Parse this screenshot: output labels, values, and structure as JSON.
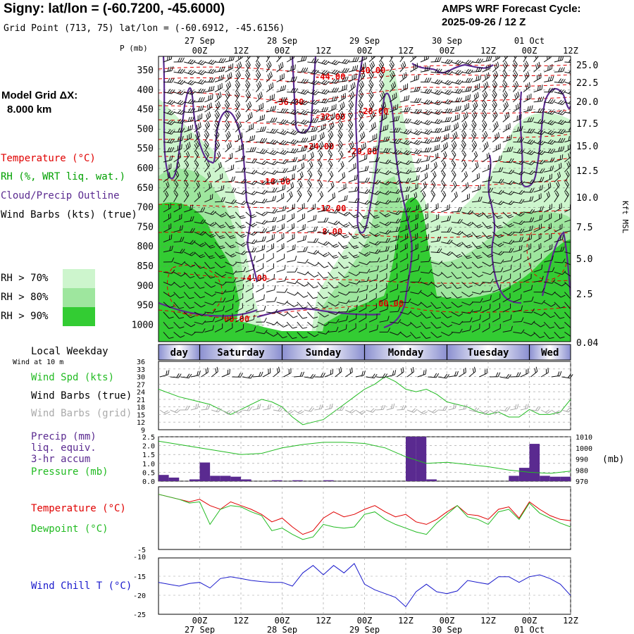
{
  "header": {
    "title": "Signy:  lat/lon = (-60.7200, -45.6000)",
    "grid_point": "Grid Point (713, 75) lat/lon = (-60.6912, -45.6156)",
    "cycle_line1": "AMPS WRF Forecast Cycle:",
    "cycle_line2": "2025-09-26 / 12  Z"
  },
  "model": {
    "label": "Model Grid ΔX:",
    "value": "8.000 km"
  },
  "colors": {
    "temperature": "#e00000",
    "rh_label": "#00a000",
    "cloud": "#5a2a90",
    "wind": "#000000",
    "rh70": "#cdf5cd",
    "rh80": "#9ee69e",
    "rh90": "#33cc33",
    "dewpoint": "#22bb22",
    "pressure": "#22bb22",
    "precip": "#5a2a90",
    "windchill": "#1a1acc",
    "grid_barbs": "#aaaaaa"
  },
  "cross_section": {
    "y_axis_title": "P (mb)",
    "pressure_ticks": [
      "350",
      "400",
      "450",
      "500",
      "550",
      "600",
      "650",
      "700",
      "750",
      "800",
      "850",
      "900",
      "950",
      "1000"
    ],
    "height_axis_title": "Kft MSL",
    "height_ticks": [
      "25.0",
      "22.5",
      "20.0",
      "17.5",
      "15.0",
      "12.5",
      "10.0",
      "7.5",
      "5.0",
      "2.5",
      "0.04"
    ],
    "legend": {
      "temperature": "Temperature (°C)",
      "rh": "RH (%, WRT liq. wat.)",
      "cloud": "Cloud/Precip Outline",
      "wind": "Wind Barbs (kts) (true)",
      "rh70": "RH > 70%",
      "rh80": "RH > 80%",
      "rh90": "RH > 90%"
    },
    "contour_labels": [
      "-44.00",
      "-40.00",
      "-36.00",
      "-32.00",
      "-28.00",
      "-24.00",
      "-20.00",
      "-16.00",
      "-12.00",
      "-8.00",
      "-4.00",
      "00.00",
      "00.00"
    ]
  },
  "time_axis": {
    "top_dates": [
      "27 Sep",
      "28 Sep",
      "29 Sep",
      "30 Sep",
      "01 Oct"
    ],
    "hour_ticks": [
      "00Z",
      "12Z",
      "00Z",
      "12Z",
      "00Z",
      "12Z",
      "00Z",
      "12Z",
      "00Z",
      "12Z"
    ],
    "bottom_dates": [
      "27 Sep",
      "28 Sep",
      "29 Sep",
      "30 Sep",
      "01 Oct"
    ]
  },
  "weekday": {
    "label": "Local Weekday",
    "days": [
      "day",
      "Saturday",
      "Sunday",
      "Monday",
      "Tuesday",
      "Wed"
    ]
  },
  "wind_panel": {
    "note": "Wind at 10 m",
    "spd_label": "Wind Spd (kts)",
    "barbs_true_label": "Wind Barbs (true)",
    "barbs_grid_label": "Wind Barbs (grid)",
    "ticks": [
      "36",
      "33",
      "30",
      "27",
      "24",
      "21",
      "18",
      "15",
      "12",
      "9"
    ]
  },
  "precip_panel": {
    "label1": "Precip (mm)",
    "label2": "liq. equiv.",
    "label3": "3-hr accum",
    "label4": "Pressure (mb)",
    "left_ticks": [
      "2.5",
      "2.0",
      "1.5",
      "1.0",
      "0.5",
      "0.0"
    ],
    "right_ticks": [
      "1010",
      "1000",
      "990",
      "980",
      "970"
    ],
    "right_unit": "(mb)"
  },
  "temp_panel": {
    "temp_label": "Temperature (°C)",
    "dew_label": "Dewpoint (°C)",
    "ticks": [
      "-5"
    ]
  },
  "chill_panel": {
    "label": "Wind Chill T (°C)",
    "ticks": [
      "-10",
      "-15",
      "-20",
      "-25"
    ]
  },
  "chart_data": [
    {
      "type": "line",
      "title": "Wind Spd (kts)",
      "x_hours": [
        0,
        6,
        9,
        12,
        15,
        18,
        21,
        24,
        27,
        30,
        33,
        36,
        39,
        42,
        45,
        48,
        51,
        54,
        57,
        60,
        63,
        66,
        69,
        72,
        75,
        78,
        81,
        84,
        87,
        90,
        93,
        96,
        99,
        102,
        105,
        108,
        111,
        114,
        117,
        120
      ],
      "values": [
        25,
        22,
        21,
        20,
        19,
        17,
        15,
        17,
        19,
        21,
        20,
        18,
        14,
        11,
        12,
        13,
        16,
        19,
        22,
        25,
        27,
        30,
        28,
        25,
        24,
        25,
        23,
        20,
        19,
        18,
        16,
        15,
        16,
        14,
        14,
        17,
        15,
        15,
        16,
        21
      ],
      "ylim": [
        9,
        36
      ]
    },
    {
      "type": "bar",
      "title": "Precip (mm) liq. equiv. 3-hr accum",
      "x_hours": [
        0,
        3,
        6,
        9,
        12,
        15,
        18,
        21,
        24,
        27,
        30,
        33,
        36,
        39,
        42,
        45,
        48,
        51,
        54,
        57,
        60,
        63,
        66,
        69,
        72,
        75,
        78,
        81,
        84,
        87,
        90,
        93,
        96,
        99,
        102,
        105,
        108,
        111,
        114,
        117
      ],
      "values": [
        0.35,
        0.2,
        0.0,
        0.1,
        1.05,
        0.3,
        0.3,
        0.25,
        0.1,
        0.0,
        0.0,
        0.05,
        0.0,
        0.05,
        0.0,
        0.0,
        0.05,
        0.0,
        0.0,
        0.0,
        0.0,
        0.0,
        0.0,
        0.0,
        2.5,
        2.5,
        0.1,
        0.0,
        0.0,
        0.0,
        0.0,
        0.0,
        0.0,
        0.0,
        0.3,
        0.75,
        2.1,
        0.3,
        0.25,
        0.25
      ],
      "ylim": [
        0,
        2.5
      ]
    },
    {
      "type": "line",
      "title": "Pressure (mb)",
      "x_hours": [
        0,
        6,
        12,
        18,
        24,
        30,
        36,
        42,
        48,
        54,
        60,
        66,
        72,
        78,
        84,
        90,
        96,
        102,
        108,
        114,
        120
      ],
      "values": [
        1006,
        1003,
        1000,
        997,
        994,
        995,
        1000,
        1003,
        1005,
        1005,
        1004,
        1000,
        992,
        986,
        987,
        985,
        983,
        980,
        978,
        977,
        979
      ],
      "ylim": [
        970,
        1010
      ]
    },
    {
      "type": "line",
      "title": "Temperature / Dewpoint (°C)",
      "x_hours": [
        0,
        6,
        9,
        12,
        15,
        18,
        21,
        24,
        27,
        30,
        33,
        36,
        39,
        42,
        45,
        48,
        51,
        54,
        57,
        60,
        63,
        66,
        69,
        72,
        75,
        78,
        81,
        84,
        87,
        90,
        93,
        96,
        99,
        102,
        105,
        108,
        111,
        114,
        117,
        120
      ],
      "series": [
        {
          "name": "Temperature (°C)",
          "values": [
            -0.6,
            -1.0,
            -1.2,
            -1.0,
            -1.5,
            -1.8,
            -1.2,
            -1.5,
            -1.8,
            -2.2,
            -2.8,
            -2.5,
            -3.2,
            -3.8,
            -3.5,
            -2.5,
            -2.0,
            -2.4,
            -2.2,
            -1.8,
            -1.5,
            -2.0,
            -2.4,
            -2.2,
            -2.8,
            -3.0,
            -2.6,
            -2.0,
            -1.5,
            -2.2,
            -2.3,
            -2.6,
            -1.8,
            -1.6,
            -2.5,
            -1.2,
            -1.8,
            -2.3,
            -2.6,
            -2.7
          ]
        },
        {
          "name": "Dewpoint (°C)",
          "values": [
            -0.6,
            -1.0,
            -1.3,
            -1.2,
            -3.0,
            -1.8,
            -1.5,
            -1.6,
            -2.0,
            -2.3,
            -3.5,
            -3.3,
            -3.8,
            -4.2,
            -4.0,
            -3.0,
            -3.2,
            -3.3,
            -3.2,
            -2.2,
            -2.0,
            -2.6,
            -3.0,
            -3.3,
            -3.6,
            -3.8,
            -2.9,
            -2.2,
            -1.5,
            -2.4,
            -2.6,
            -3.0,
            -2.0,
            -1.8,
            -2.6,
            -1.3,
            -2.1,
            -2.5,
            -2.9,
            -3.2
          ]
        }
      ],
      "ylim": [
        -5,
        0
      ]
    },
    {
      "type": "line",
      "title": "Wind Chill T (°C)",
      "x_hours": [
        0,
        6,
        9,
        12,
        15,
        18,
        21,
        24,
        27,
        30,
        33,
        36,
        39,
        42,
        45,
        48,
        51,
        54,
        57,
        60,
        63,
        66,
        69,
        72,
        75,
        78,
        81,
        84,
        87,
        90,
        93,
        96,
        99,
        102,
        105,
        108,
        111,
        114,
        117,
        120
      ],
      "values": [
        -16.5,
        -17.5,
        -16.8,
        -16.5,
        -18,
        -15.5,
        -15,
        -15.5,
        -16,
        -16.3,
        -16.5,
        -16.5,
        -17.5,
        -14,
        -12,
        -14.5,
        -12,
        -14,
        -11.5,
        -17,
        -18.5,
        -19.5,
        -20.5,
        -23,
        -19,
        -17,
        -19,
        -19.5,
        -18.8,
        -16,
        -16.5,
        -17,
        -15,
        -15,
        -16.5,
        -15,
        -14.5,
        -15.5,
        -17,
        -20
      ]
    }
  ]
}
